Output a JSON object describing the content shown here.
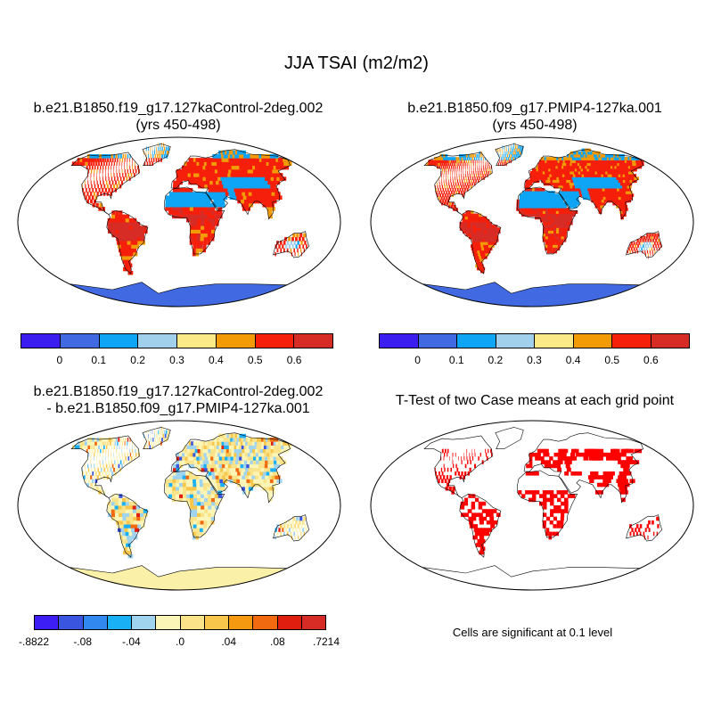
{
  "main_title": "JJA TSAI (m2/m2)",
  "panels": {
    "top_left": {
      "title_line1": "b.e21.B1850.f19_g17.127kaControl-2deg.002",
      "title_line2": "(yrs 450-498)"
    },
    "top_right": {
      "title_line1": "b.e21.B1850.f09_g17.PMIP4-127ka.001",
      "title_line2": "(yrs 450-498)"
    },
    "bottom_left": {
      "title_line1": "b.e21.B1850.f19_g17.127kaControl-2deg.002",
      "title_line2": "- b.e21.B1850.f09_g17.PMIP4-127ka.001"
    },
    "bottom_right": {
      "title_line1": "T-Test of two Case means at each grid point"
    }
  },
  "colorbar_top": {
    "colors": [
      "#3b1df0",
      "#4169e1",
      "#0ea5f5",
      "#a0d0ec",
      "#fbe988",
      "#f39a07",
      "#f51f0a",
      "#d72c26"
    ],
    "labels": [
      "0",
      "0.1",
      "0.2",
      "0.3",
      "0.4",
      "0.5",
      "0.6"
    ]
  },
  "colorbar_diff": {
    "colors": [
      "#3d1ef5",
      "#3a55e0",
      "#3189ef",
      "#1ab0f5",
      "#a0d3ee",
      "#fcf5b8",
      "#fbe389",
      "#f7c64a",
      "#f59a10",
      "#f26a10",
      "#e01e10",
      "#d72c26"
    ],
    "labels": [
      "-.8822",
      "-.08",
      "-.04",
      ".0",
      ".04",
      ".08",
      ".7214"
    ]
  },
  "significance_color": "#ff0000",
  "land_colors": {
    "ocean": "#ffffff",
    "antarctica_abs": "#4169e1",
    "antarctica_diff": "#fbf0a8"
  },
  "note": "Cells are significant at 0.1 level"
}
